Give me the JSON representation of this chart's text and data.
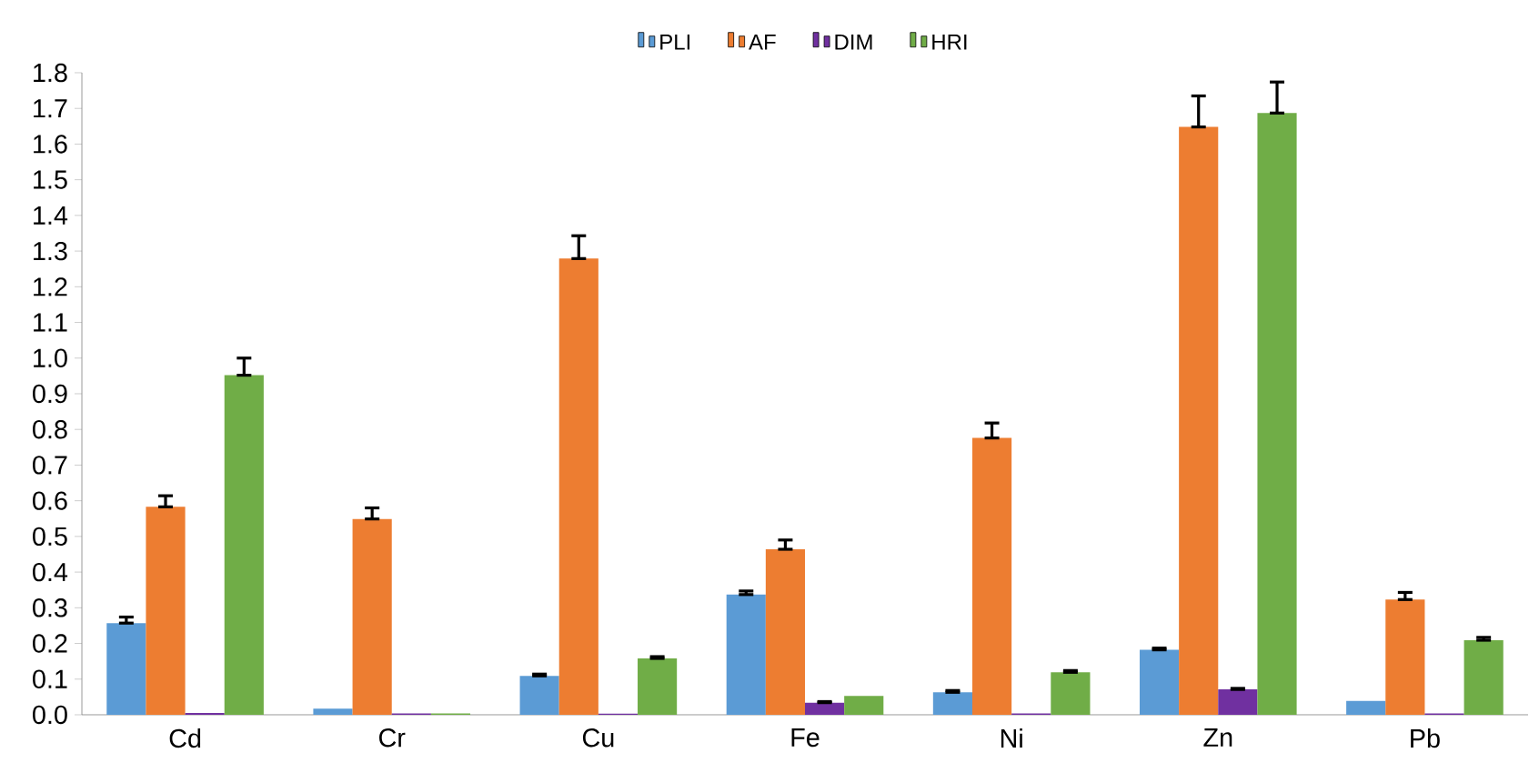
{
  "chart_data": {
    "type": "bar",
    "categories": [
      "Cd",
      "Cr",
      "Cu",
      "Fe",
      "Ni",
      "Zn",
      "Pb"
    ],
    "series": [
      {
        "name": "PLI",
        "color": "#5b9bd5",
        "values": [
          0.257,
          0.017,
          0.109,
          0.337,
          0.063,
          0.182,
          0.039
        ],
        "errors": [
          [
            0.257,
            0.274
          ],
          null,
          [
            0.109,
            0.114
          ],
          [
            0.337,
            0.347
          ],
          [
            0.063,
            0.068
          ],
          [
            0.182,
            0.187
          ],
          null
        ]
      },
      {
        "name": "AF",
        "color": "#ed7d31",
        "values": [
          0.583,
          0.549,
          1.279,
          0.464,
          0.776,
          1.648,
          0.323
        ],
        "errors": [
          [
            0.583,
            0.614
          ],
          [
            0.549,
            0.58
          ],
          [
            1.279,
            1.343
          ],
          [
            0.464,
            0.49
          ],
          [
            0.776,
            0.818
          ],
          [
            1.648,
            1.735
          ],
          [
            0.323,
            0.343
          ]
        ]
      },
      {
        "name": "DIM",
        "color": "#7030a0",
        "values": [
          0.005,
          0.004,
          0.003,
          0.034,
          0.004,
          0.071,
          0.004
        ],
        "errors": [
          null,
          null,
          null,
          [
            0.034,
            0.037
          ],
          null,
          [
            0.071,
            0.074
          ],
          null
        ]
      },
      {
        "name": "HRI",
        "color": "#70ad47",
        "values": [
          0.952,
          0.004,
          0.158,
          0.053,
          0.119,
          1.687,
          0.209
        ],
        "errors": [
          [
            0.952,
            1.0
          ],
          null,
          [
            0.158,
            0.163
          ],
          null,
          [
            0.119,
            0.124
          ],
          [
            1.687,
            1.774
          ],
          [
            0.209,
            0.217
          ]
        ]
      }
    ],
    "ylim": [
      0,
      1.8
    ],
    "yticks": [
      {
        "value": 0,
        "label": "0.0"
      },
      0.1,
      0.2,
      0.3,
      0.4,
      0.5,
      0.6,
      0.7,
      0.8,
      0.9,
      {
        "value": 1,
        "label": "1.0"
      },
      1.1,
      1.2,
      1.3,
      1.4,
      1.5,
      1.6,
      1.7,
      1.8
    ],
    "grid": false,
    "legend": "top"
  }
}
